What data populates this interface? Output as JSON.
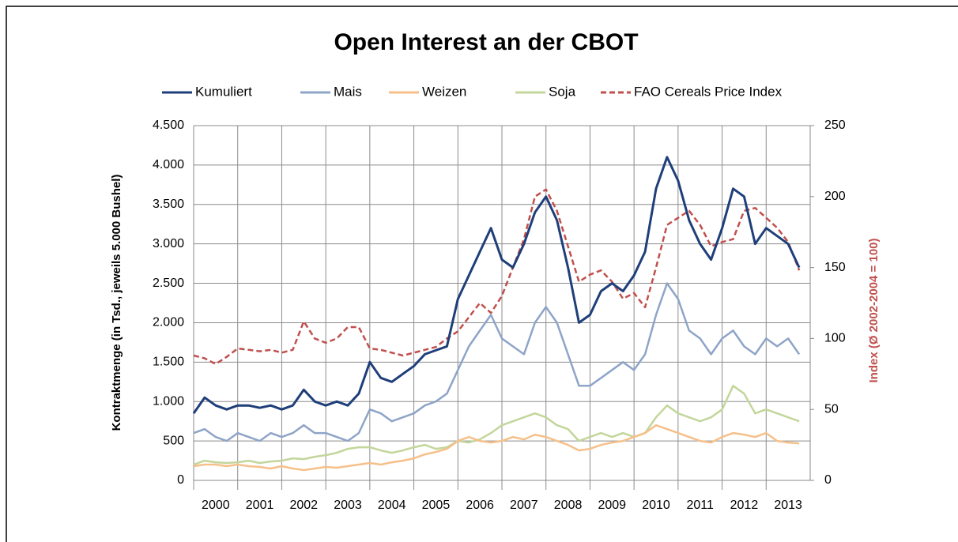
{
  "chart_data": {
    "type": "line",
    "title": "Open Interest an der CBOT",
    "ylabel": "Kontraktmenge (in Tsd., jeweils 5.000 Bushel)",
    "y2label": "Index (Ø 2002-2004 = 100)",
    "x": [
      2000,
      2000.25,
      2000.5,
      2000.75,
      2001,
      2001.25,
      2001.5,
      2001.75,
      2002,
      2002.25,
      2002.5,
      2002.75,
      2003,
      2003.25,
      2003.5,
      2003.75,
      2004,
      2004.25,
      2004.5,
      2004.75,
      2005,
      2005.25,
      2005.5,
      2005.75,
      2006,
      2006.25,
      2006.5,
      2006.75,
      2007,
      2007.25,
      2007.5,
      2007.75,
      2008,
      2008.25,
      2008.5,
      2008.75,
      2009,
      2009.25,
      2009.5,
      2009.75,
      2010,
      2010.25,
      2010.5,
      2010.75,
      2011,
      2011.25,
      2011.5,
      2011.75,
      2012,
      2012.25,
      2012.5,
      2012.75,
      2013,
      2013.25,
      2013.5,
      2013.75
    ],
    "xlim": [
      2000,
      2014
    ],
    "xticks": [
      {
        "value": 2000.5,
        "label": "2000"
      },
      {
        "value": 2001.5,
        "label": "2001"
      },
      {
        "value": 2002.5,
        "label": "2002"
      },
      {
        "value": 2003.5,
        "label": "2003"
      },
      {
        "value": 2004.5,
        "label": "2004"
      },
      {
        "value": 2005.5,
        "label": "2005"
      },
      {
        "value": 2006.5,
        "label": "2006"
      },
      {
        "value": 2007.5,
        "label": "2007"
      },
      {
        "value": 2008.5,
        "label": "2008"
      },
      {
        "value": 2009.5,
        "label": "2009"
      },
      {
        "value": 2010.5,
        "label": "2010"
      },
      {
        "value": 2011.5,
        "label": "2011"
      },
      {
        "value": 2012.5,
        "label": "2012"
      },
      {
        "value": 2013.5,
        "label": "2013"
      }
    ],
    "ylim": [
      0,
      4500
    ],
    "yticks": [
      0,
      500,
      {
        "value": 1000,
        "label": "1.000"
      },
      {
        "value": 1500,
        "label": "1.500"
      },
      {
        "value": 2000,
        "label": "2.000"
      },
      {
        "value": 2500,
        "label": "2.500"
      },
      {
        "value": 3000,
        "label": "3.000"
      },
      {
        "value": 3500,
        "label": "3.500"
      },
      {
        "value": 4000,
        "label": "4.000"
      },
      {
        "value": 4500,
        "label": "4.500"
      }
    ],
    "y2lim": [
      0,
      250
    ],
    "y2ticks": [
      0,
      50,
      100,
      150,
      200,
      250
    ],
    "grid": true,
    "series": [
      {
        "name": "Kumuliert",
        "color": "#1f3f7a",
        "values": [
          850,
          1050,
          950,
          900,
          950,
          950,
          920,
          950,
          900,
          950,
          1150,
          1000,
          950,
          1000,
          950,
          1100,
          1500,
          1300,
          1250,
          1350,
          1450,
          1600,
          1650,
          1700,
          2300,
          2600,
          2900,
          3200,
          2800,
          2700,
          3000,
          3400,
          3600,
          3300,
          2700,
          2000,
          2100,
          2400,
          2500,
          2400,
          2600,
          2900,
          3700,
          4100,
          3800,
          3300,
          3000,
          2800,
          3200,
          3700,
          3600,
          3000,
          3200,
          3100,
          3000,
          2700
        ]
      },
      {
        "name": "Mais",
        "color": "#8ea4c8",
        "values": [
          600,
          650,
          550,
          500,
          600,
          550,
          500,
          600,
          550,
          600,
          700,
          600,
          600,
          550,
          500,
          600,
          900,
          850,
          750,
          800,
          850,
          950,
          1000,
          1100,
          1400,
          1700,
          1900,
          2100,
          1800,
          1700,
          1600,
          2000,
          2200,
          2000,
          1600,
          1200,
          1200,
          1300,
          1400,
          1500,
          1400,
          1600,
          2100,
          2500,
          2300,
          1900,
          1800,
          1600,
          1800,
          1900,
          1700,
          1600,
          1800,
          1700,
          1800,
          1600
        ]
      },
      {
        "name": "Weizen",
        "color": "#f6c08a",
        "values": [
          180,
          200,
          200,
          180,
          200,
          180,
          170,
          150,
          180,
          150,
          130,
          150,
          170,
          160,
          180,
          200,
          220,
          200,
          230,
          250,
          280,
          330,
          360,
          400,
          500,
          550,
          500,
          480,
          500,
          550,
          520,
          580,
          550,
          500,
          450,
          380,
          400,
          450,
          480,
          500,
          550,
          600,
          700,
          650,
          600,
          550,
          500,
          480,
          550,
          600,
          580,
          550,
          600,
          500,
          480,
          470
        ]
      },
      {
        "name": "Soja",
        "color": "#c3d69b",
        "values": [
          200,
          250,
          230,
          220,
          230,
          250,
          220,
          240,
          250,
          280,
          270,
          300,
          320,
          350,
          400,
          420,
          420,
          380,
          350,
          380,
          420,
          450,
          400,
          420,
          500,
          480,
          520,
          600,
          700,
          750,
          800,
          850,
          800,
          700,
          650,
          500,
          550,
          600,
          550,
          600,
          550,
          600,
          800,
          950,
          850,
          800,
          750,
          800,
          900,
          1200,
          1100,
          850,
          900,
          850,
          800,
          750
        ]
      },
      {
        "name": "FAO Cereals Price Index",
        "color": "#c0504d",
        "dashed": true,
        "axis": "y2",
        "values": [
          88,
          86,
          82,
          87,
          93,
          92,
          91,
          92,
          90,
          92,
          112,
          100,
          97,
          100,
          108,
          108,
          93,
          92,
          90,
          88,
          90,
          92,
          94,
          100,
          105,
          115,
          125,
          118,
          130,
          150,
          170,
          200,
          205,
          190,
          165,
          140,
          145,
          148,
          140,
          128,
          132,
          122,
          150,
          180,
          185,
          190,
          180,
          165,
          168,
          170,
          190,
          192,
          185,
          178,
          168,
          148
        ]
      }
    ]
  }
}
